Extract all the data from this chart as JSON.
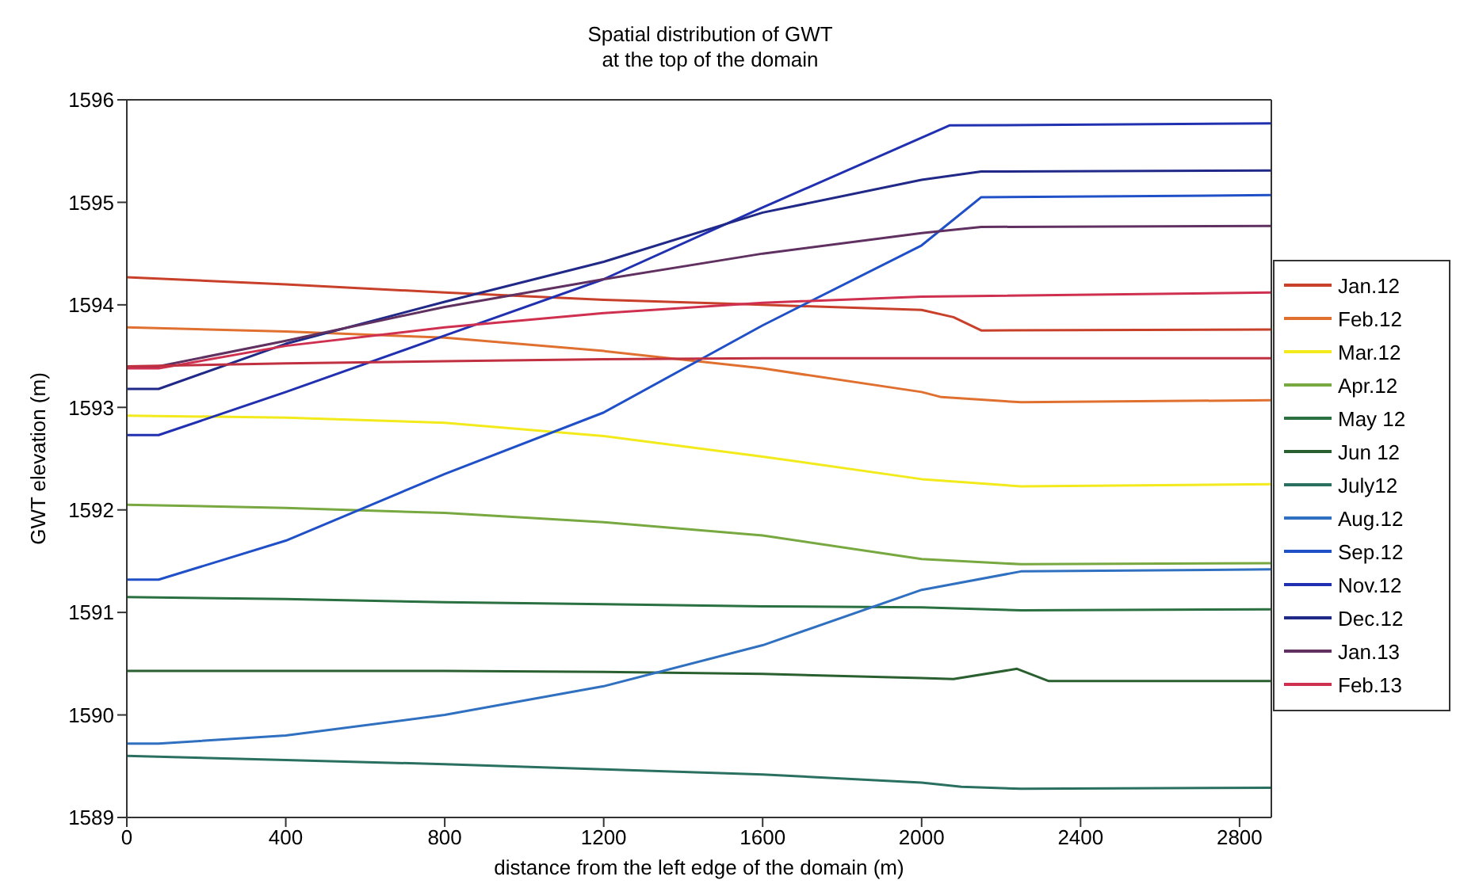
{
  "chart_data": {
    "type": "line",
    "title": "Spatial distribution of GWT\nat the top of the domain",
    "xlabel": "distance from the left edge of the domain (m)",
    "ylabel": "GWT elevation (m)",
    "xlim": [
      0,
      2880
    ],
    "xticks": [
      0,
      400,
      800,
      1200,
      1600,
      2000,
      2400,
      2800
    ],
    "ylim": [
      1589,
      1596
    ],
    "yticks": [
      1589,
      1590,
      1591,
      1592,
      1593,
      1594,
      1595,
      1596
    ],
    "grid": false,
    "legend": "right",
    "marker": "none",
    "line_style": "solid",
    "series": [
      {
        "name": "Jan.12",
        "color": "#c8402a",
        "x": [
          0,
          400,
          800,
          1200,
          1600,
          2000,
          2080,
          2150,
          2880
        ],
        "values": [
          1594.27,
          1594.2,
          1594.12,
          1594.05,
          1594.0,
          1593.95,
          1593.88,
          1593.75,
          1593.76
        ]
      },
      {
        "name": "Feb.12",
        "color": "#e07030",
        "x": [
          0,
          400,
          800,
          1200,
          1600,
          2000,
          2050,
          2250,
          2880
        ],
        "values": [
          1593.78,
          1593.74,
          1593.68,
          1593.55,
          1593.38,
          1593.15,
          1593.1,
          1593.05,
          1593.07
        ]
      },
      {
        "name": "Mar.12",
        "color": "#f2ea1a",
        "x": [
          0,
          400,
          800,
          1200,
          1600,
          2000,
          2250,
          2880
        ],
        "values": [
          1592.92,
          1592.9,
          1592.85,
          1592.72,
          1592.52,
          1592.3,
          1592.23,
          1592.25
        ]
      },
      {
        "name": "Apr.12",
        "color": "#78a840",
        "x": [
          0,
          400,
          800,
          1200,
          1600,
          2000,
          2250,
          2880
        ],
        "values": [
          1592.05,
          1592.02,
          1591.97,
          1591.88,
          1591.75,
          1591.52,
          1591.47,
          1591.48
        ]
      },
      {
        "name": "May 12",
        "color": "#2a7040",
        "x": [
          0,
          400,
          800,
          1200,
          1600,
          2000,
          2250,
          2880
        ],
        "values": [
          1591.15,
          1591.13,
          1591.1,
          1591.08,
          1591.06,
          1591.05,
          1591.02,
          1591.03
        ]
      },
      {
        "name": "Jun 12",
        "color": "#2a6030",
        "x": [
          0,
          400,
          800,
          1200,
          1600,
          2000,
          2080,
          2240,
          2320,
          2880
        ],
        "values": [
          1590.43,
          1590.43,
          1590.43,
          1590.42,
          1590.4,
          1590.36,
          1590.35,
          1590.45,
          1590.33,
          1590.33
        ]
      },
      {
        "name": "July12",
        "color": "#2a7060",
        "x": [
          0,
          400,
          800,
          1200,
          1600,
          2000,
          2100,
          2250,
          2880
        ],
        "values": [
          1589.6,
          1589.56,
          1589.52,
          1589.47,
          1589.42,
          1589.34,
          1589.3,
          1589.28,
          1589.29
        ]
      },
      {
        "name": "Aug.12",
        "color": "#3070c0",
        "x": [
          0,
          80,
          400,
          800,
          1200,
          1600,
          2000,
          2250,
          2880
        ],
        "values": [
          1589.72,
          1589.72,
          1589.8,
          1590.0,
          1590.28,
          1590.68,
          1591.22,
          1591.4,
          1591.42
        ]
      },
      {
        "name": "Sep.12",
        "color": "#2050c8",
        "x": [
          0,
          80,
          400,
          800,
          1200,
          1600,
          2000,
          2150,
          2880
        ],
        "values": [
          1591.32,
          1591.32,
          1591.7,
          1592.35,
          1592.95,
          1593.8,
          1594.58,
          1595.05,
          1595.07
        ]
      },
      {
        "name": "Nov.12",
        "color": "#2030b0",
        "x": [
          0,
          80,
          400,
          800,
          1200,
          1600,
          2070,
          2880
        ],
        "values": [
          1592.73,
          1592.73,
          1593.15,
          1593.7,
          1594.25,
          1594.95,
          1595.75,
          1595.77
        ]
      },
      {
        "name": "Dec.12",
        "color": "#202888",
        "x": [
          0,
          80,
          400,
          800,
          1200,
          1600,
          2000,
          2150,
          2880
        ],
        "values": [
          1593.18,
          1593.18,
          1593.62,
          1594.03,
          1594.42,
          1594.9,
          1595.22,
          1595.3,
          1595.31
        ]
      },
      {
        "name": "Jan.13",
        "color": "#603060",
        "x": [
          0,
          80,
          400,
          800,
          1200,
          1600,
          2000,
          2150,
          2880
        ],
        "values": [
          1593.4,
          1593.4,
          1593.65,
          1593.98,
          1594.25,
          1594.5,
          1594.7,
          1594.76,
          1594.77
        ]
      },
      {
        "name": "Feb.13",
        "color": "#d03050",
        "x": [
          0,
          80,
          400,
          800,
          1200,
          1600,
          2000,
          2880
        ],
        "values": [
          1593.38,
          1593.38,
          1593.6,
          1593.78,
          1593.92,
          1594.02,
          1594.08,
          1594.12
        ]
      },
      {
        "color": "#c03040",
        "x": [
          0,
          400,
          800,
          1200,
          1600,
          2000,
          2880
        ],
        "values": [
          1593.4,
          1593.43,
          1593.45,
          1593.47,
          1593.48,
          1593.48,
          1593.48
        ]
      }
    ]
  }
}
